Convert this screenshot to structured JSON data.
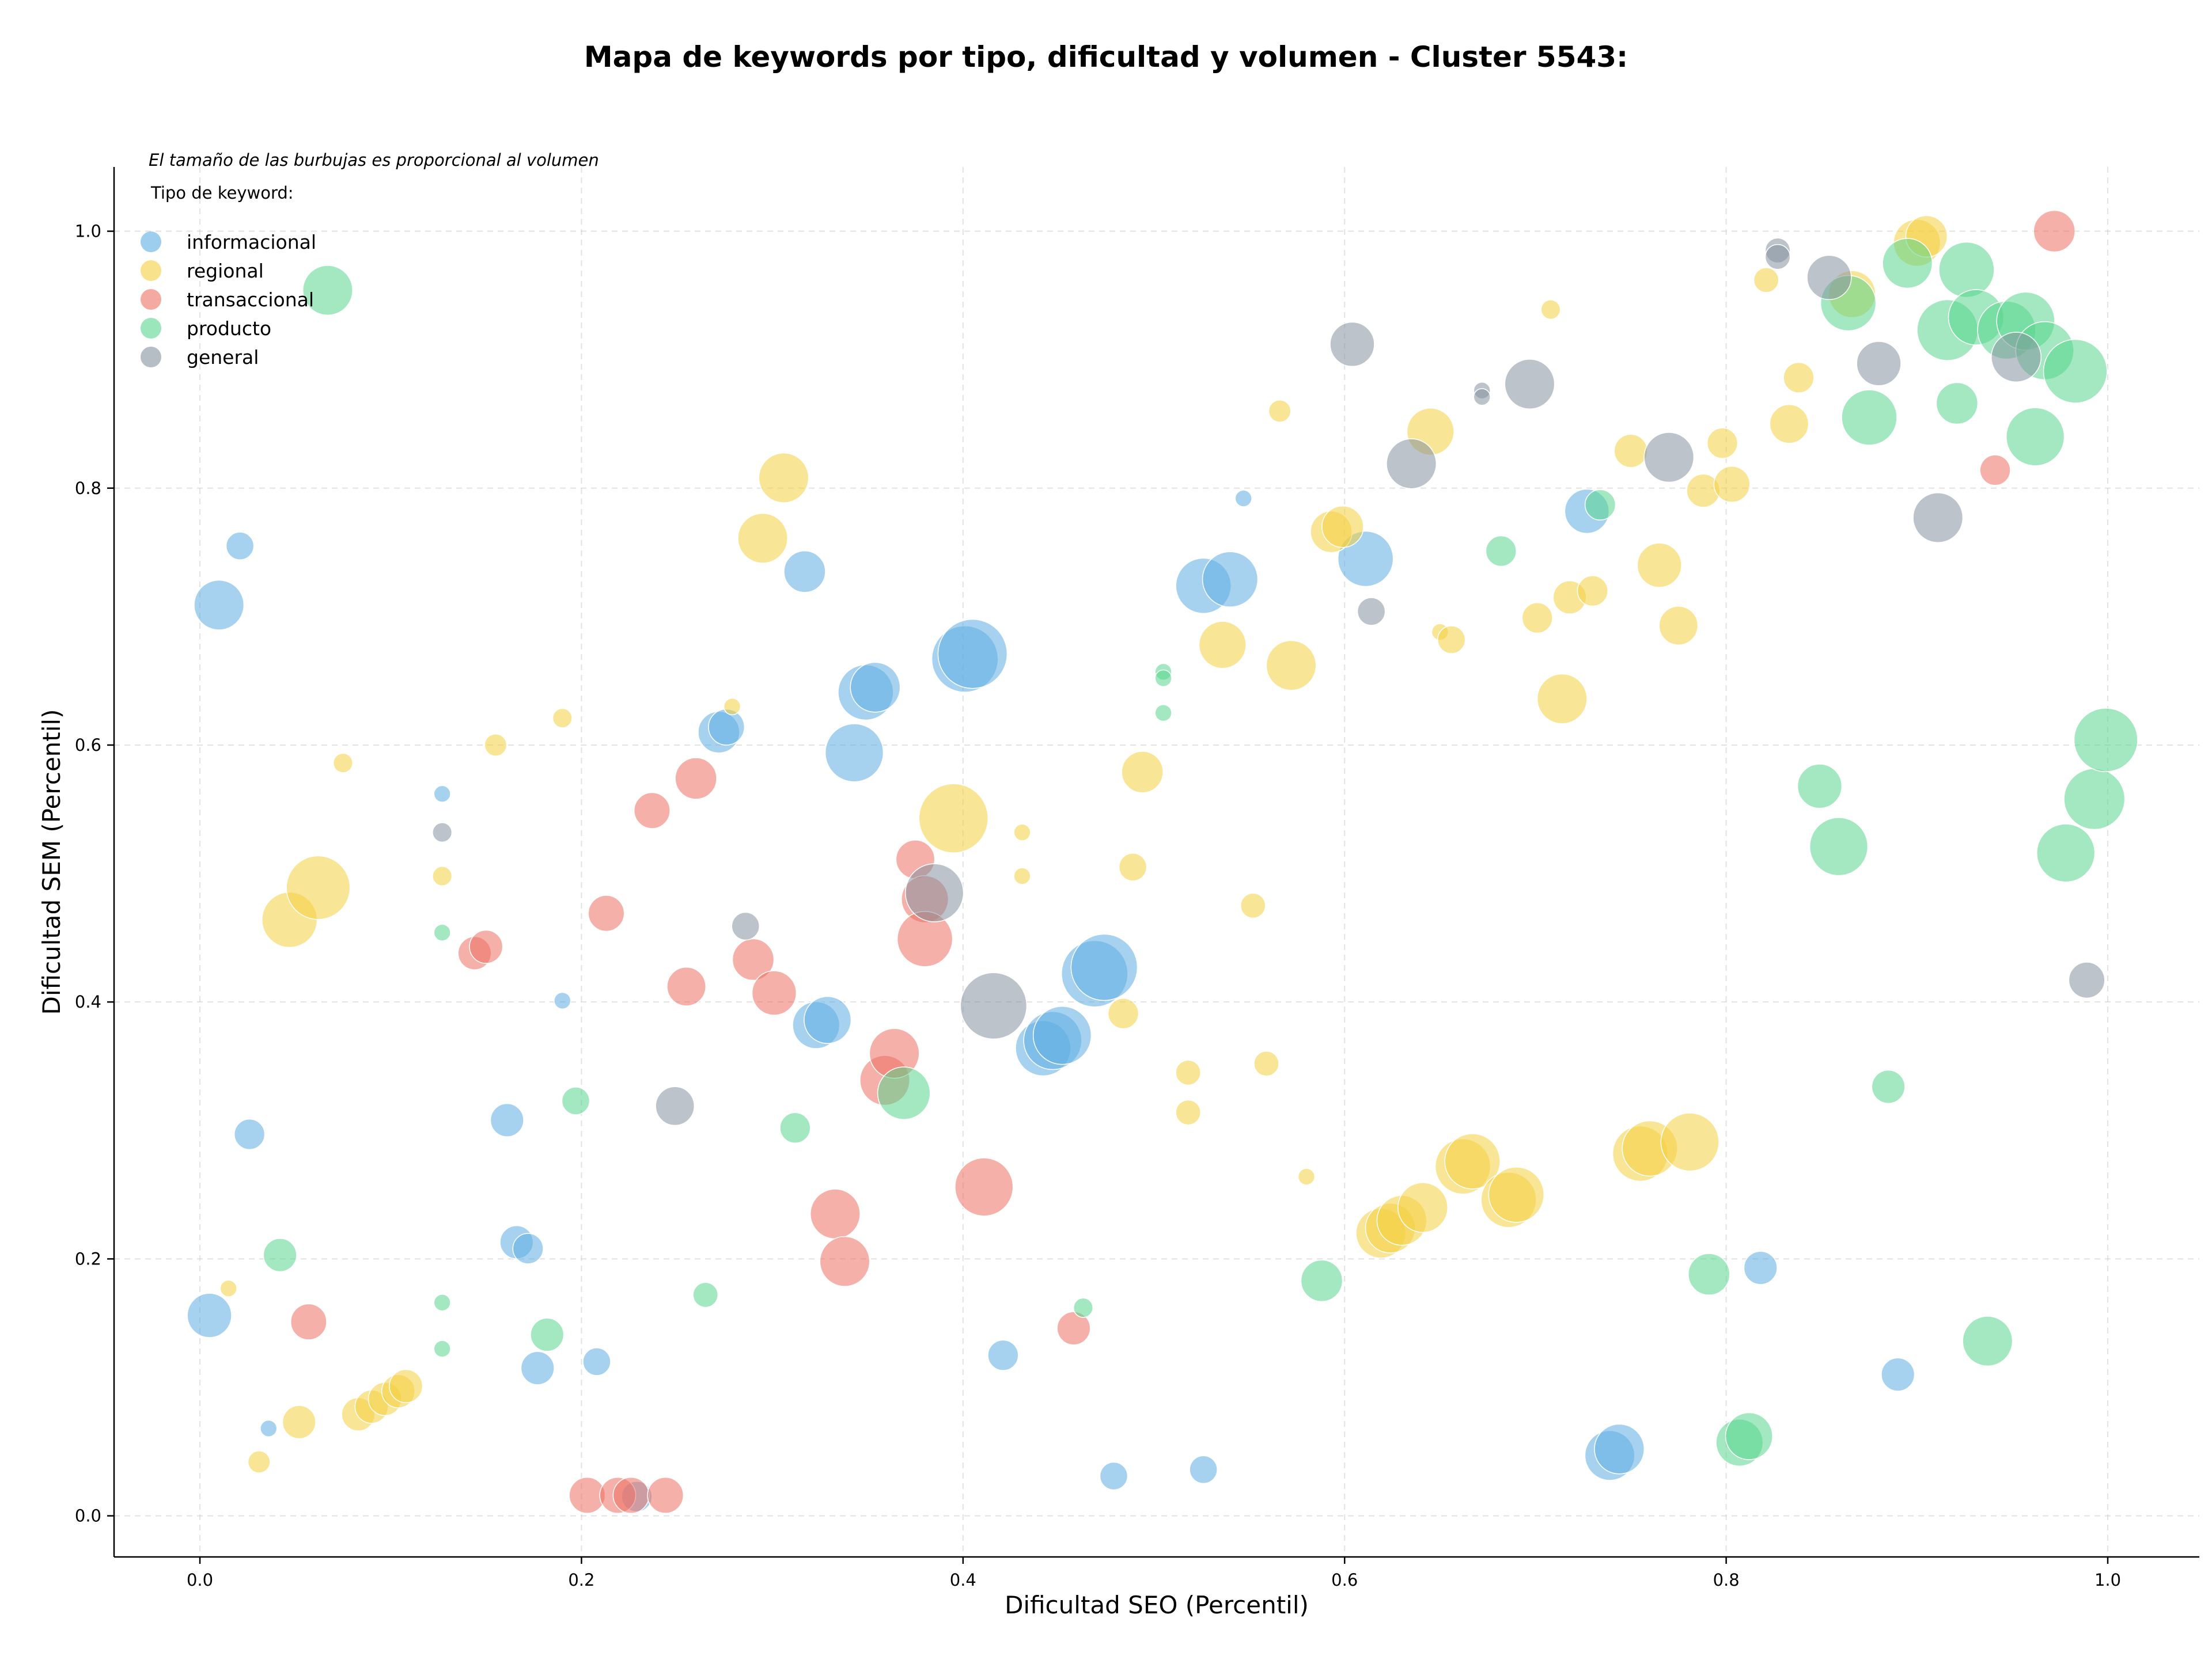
{
  "chart_data": {
    "type": "scatter",
    "title": "Mapa de keywords por tipo, dificultad y volumen - Cluster 5543:",
    "xlabel": "Dificultad SEO (Percentil)",
    "ylabel": "Dificultad SEM (Percentil)",
    "annotation": "El tamaño de las burbujas es proporcional al volumen",
    "legend_title": "Tipo de keyword:",
    "legend_position": "top-left",
    "grid": true,
    "xlim": [
      -0.045,
      1.048
    ],
    "ylim": [
      -0.032,
      1.05
    ],
    "x_ticks": [
      "0.0",
      "0.2",
      "0.4",
      "0.6",
      "0.8",
      "1.0"
    ],
    "y_ticks": [
      "0.0",
      "0.2",
      "0.4",
      "0.6",
      "0.8",
      "1.0"
    ],
    "series": [
      {
        "name": "informacional",
        "color": "#5DADE2",
        "points": [
          {
            "x": 0.01,
            "y": 0.709,
            "size": 3.6
          },
          {
            "x": 0.021,
            "y": 0.755,
            "size": 2.0
          },
          {
            "x": 0.026,
            "y": 0.297,
            "size": 2.2
          },
          {
            "x": 0.005,
            "y": 0.156,
            "size": 3.2
          },
          {
            "x": 0.036,
            "y": 0.068,
            "size": 1.2
          },
          {
            "x": 0.127,
            "y": 0.562,
            "size": 1.2
          },
          {
            "x": 0.161,
            "y": 0.308,
            "size": 2.4
          },
          {
            "x": 0.166,
            "y": 0.213,
            "size": 2.4
          },
          {
            "x": 0.172,
            "y": 0.208,
            "size": 2.2
          },
          {
            "x": 0.177,
            "y": 0.115,
            "size": 2.4
          },
          {
            "x": 0.19,
            "y": 0.401,
            "size": 1.2
          },
          {
            "x": 0.208,
            "y": 0.12,
            "size": 2.0
          },
          {
            "x": 0.229,
            "y": 0.015,
            "size": 2.2
          },
          {
            "x": 0.272,
            "y": 0.61,
            "size": 3.0
          },
          {
            "x": 0.276,
            "y": 0.614,
            "size": 2.6
          },
          {
            "x": 0.317,
            "y": 0.735,
            "size": 3.0
          },
          {
            "x": 0.343,
            "y": 0.594,
            "size": 4.2
          },
          {
            "x": 0.349,
            "y": 0.641,
            "size": 4.0
          },
          {
            "x": 0.354,
            "y": 0.645,
            "size": 3.6
          },
          {
            "x": 0.323,
            "y": 0.382,
            "size": 3.4
          },
          {
            "x": 0.329,
            "y": 0.386,
            "size": 3.4
          },
          {
            "x": 0.401,
            "y": 0.667,
            "size": 4.8
          },
          {
            "x": 0.405,
            "y": 0.671,
            "size": 5.0
          },
          {
            "x": 0.421,
            "y": 0.125,
            "size": 2.2
          },
          {
            "x": 0.442,
            "y": 0.364,
            "size": 4.0
          },
          {
            "x": 0.447,
            "y": 0.37,
            "size": 4.2
          },
          {
            "x": 0.452,
            "y": 0.374,
            "size": 4.2
          },
          {
            "x": 0.469,
            "y": 0.422,
            "size": 4.8
          },
          {
            "x": 0.474,
            "y": 0.427,
            "size": 4.8
          },
          {
            "x": 0.479,
            "y": 0.031,
            "size": 2.0
          },
          {
            "x": 0.526,
            "y": 0.724,
            "size": 4.0
          },
          {
            "x": 0.54,
            "y": 0.729,
            "size": 4.0
          },
          {
            "x": 0.526,
            "y": 0.036,
            "size": 2.0
          },
          {
            "x": 0.547,
            "y": 0.792,
            "size": 1.2
          },
          {
            "x": 0.611,
            "y": 0.745,
            "size": 4.0
          },
          {
            "x": 0.727,
            "y": 0.782,
            "size": 3.2
          },
          {
            "x": 0.739,
            "y": 0.047,
            "size": 3.6
          },
          {
            "x": 0.744,
            "y": 0.052,
            "size": 3.6
          },
          {
            "x": 0.818,
            "y": 0.193,
            "size": 2.4
          },
          {
            "x": 0.89,
            "y": 0.11,
            "size": 2.4
          }
        ]
      },
      {
        "name": "regional",
        "color": "#F4D03F",
        "points": [
          {
            "x": 0.015,
            "y": 0.177,
            "size": 1.2
          },
          {
            "x": 0.031,
            "y": 0.042,
            "size": 1.6
          },
          {
            "x": 0.052,
            "y": 0.073,
            "size": 2.4
          },
          {
            "x": 0.047,
            "y": 0.464,
            "size": 4.0
          },
          {
            "x": 0.062,
            "y": 0.489,
            "size": 4.6
          },
          {
            "x": 0.075,
            "y": 0.586,
            "size": 1.4
          },
          {
            "x": 0.083,
            "y": 0.079,
            "size": 2.4
          },
          {
            "x": 0.09,
            "y": 0.085,
            "size": 2.4
          },
          {
            "x": 0.097,
            "y": 0.091,
            "size": 2.4
          },
          {
            "x": 0.104,
            "y": 0.097,
            "size": 2.4
          },
          {
            "x": 0.108,
            "y": 0.101,
            "size": 2.4
          },
          {
            "x": 0.127,
            "y": 0.498,
            "size": 1.4
          },
          {
            "x": 0.155,
            "y": 0.6,
            "size": 1.6
          },
          {
            "x": 0.19,
            "y": 0.621,
            "size": 1.4
          },
          {
            "x": 0.279,
            "y": 0.63,
            "size": 1.2
          },
          {
            "x": 0.295,
            "y": 0.761,
            "size": 3.6
          },
          {
            "x": 0.306,
            "y": 0.808,
            "size": 3.6
          },
          {
            "x": 0.395,
            "y": 0.543,
            "size": 5.0
          },
          {
            "x": 0.431,
            "y": 0.532,
            "size": 1.2
          },
          {
            "x": 0.431,
            "y": 0.498,
            "size": 1.2
          },
          {
            "x": 0.484,
            "y": 0.391,
            "size": 2.2
          },
          {
            "x": 0.489,
            "y": 0.505,
            "size": 2.0
          },
          {
            "x": 0.494,
            "y": 0.579,
            "size": 3.0
          },
          {
            "x": 0.518,
            "y": 0.345,
            "size": 1.8
          },
          {
            "x": 0.518,
            "y": 0.314,
            "size": 1.8
          },
          {
            "x": 0.536,
            "y": 0.678,
            "size": 3.4
          },
          {
            "x": 0.552,
            "y": 0.475,
            "size": 1.8
          },
          {
            "x": 0.559,
            "y": 0.352,
            "size": 1.8
          },
          {
            "x": 0.566,
            "y": 0.86,
            "size": 1.6
          },
          {
            "x": 0.572,
            "y": 0.662,
            "size": 3.6
          },
          {
            "x": 0.58,
            "y": 0.264,
            "size": 1.2
          },
          {
            "x": 0.593,
            "y": 0.766,
            "size": 3.0
          },
          {
            "x": 0.599,
            "y": 0.77,
            "size": 3.0
          },
          {
            "x": 0.619,
            "y": 0.22,
            "size": 3.6
          },
          {
            "x": 0.624,
            "y": 0.224,
            "size": 3.6
          },
          {
            "x": 0.63,
            "y": 0.23,
            "size": 3.6
          },
          {
            "x": 0.641,
            "y": 0.24,
            "size": 3.6
          },
          {
            "x": 0.645,
            "y": 0.844,
            "size": 3.4
          },
          {
            "x": 0.65,
            "y": 0.688,
            "size": 1.2
          },
          {
            "x": 0.656,
            "y": 0.682,
            "size": 2.0
          },
          {
            "x": 0.662,
            "y": 0.272,
            "size": 4.0
          },
          {
            "x": 0.667,
            "y": 0.276,
            "size": 4.0
          },
          {
            "x": 0.686,
            "y": 0.246,
            "size": 4.0
          },
          {
            "x": 0.69,
            "y": 0.25,
            "size": 4.0
          },
          {
            "x": 0.701,
            "y": 0.699,
            "size": 2.2
          },
          {
            "x": 0.708,
            "y": 0.939,
            "size": 1.4
          },
          {
            "x": 0.714,
            "y": 0.636,
            "size": 3.6
          },
          {
            "x": 0.718,
            "y": 0.715,
            "size": 2.4
          },
          {
            "x": 0.73,
            "y": 0.72,
            "size": 2.2
          },
          {
            "x": 0.75,
            "y": 0.829,
            "size": 2.4
          },
          {
            "x": 0.755,
            "y": 0.282,
            "size": 4.0
          },
          {
            "x": 0.76,
            "y": 0.286,
            "size": 4.0
          },
          {
            "x": 0.765,
            "y": 0.74,
            "size": 3.2
          },
          {
            "x": 0.775,
            "y": 0.693,
            "size": 2.8
          },
          {
            "x": 0.781,
            "y": 0.291,
            "size": 4.2
          },
          {
            "x": 0.788,
            "y": 0.798,
            "size": 2.4
          },
          {
            "x": 0.798,
            "y": 0.835,
            "size": 2.2
          },
          {
            "x": 0.803,
            "y": 0.803,
            "size": 2.6
          },
          {
            "x": 0.821,
            "y": 0.962,
            "size": 1.8
          },
          {
            "x": 0.833,
            "y": 0.85,
            "size": 2.8
          },
          {
            "x": 0.838,
            "y": 0.886,
            "size": 2.2
          },
          {
            "x": 0.866,
            "y": 0.951,
            "size": 3.4
          },
          {
            "x": 0.9,
            "y": 0.991,
            "size": 3.4
          },
          {
            "x": 0.905,
            "y": 0.996,
            "size": 3.0
          }
        ]
      },
      {
        "name": "transaccional",
        "color": "#EC7063",
        "points": [
          {
            "x": 0.057,
            "y": 0.151,
            "size": 2.6
          },
          {
            "x": 0.144,
            "y": 0.438,
            "size": 2.4
          },
          {
            "x": 0.15,
            "y": 0.443,
            "size": 2.4
          },
          {
            "x": 0.203,
            "y": 0.016,
            "size": 2.6
          },
          {
            "x": 0.213,
            "y": 0.469,
            "size": 2.6
          },
          {
            "x": 0.219,
            "y": 0.016,
            "size": 2.6
          },
          {
            "x": 0.226,
            "y": 0.016,
            "size": 2.6
          },
          {
            "x": 0.237,
            "y": 0.549,
            "size": 2.6
          },
          {
            "x": 0.244,
            "y": 0.016,
            "size": 2.6
          },
          {
            "x": 0.255,
            "y": 0.412,
            "size": 2.8
          },
          {
            "x": 0.26,
            "y": 0.574,
            "size": 3.0
          },
          {
            "x": 0.29,
            "y": 0.433,
            "size": 3.0
          },
          {
            "x": 0.301,
            "y": 0.407,
            "size": 3.2
          },
          {
            "x": 0.333,
            "y": 0.235,
            "size": 3.6
          },
          {
            "x": 0.338,
            "y": 0.198,
            "size": 3.6
          },
          {
            "x": 0.359,
            "y": 0.339,
            "size": 3.6
          },
          {
            "x": 0.364,
            "y": 0.36,
            "size": 3.6
          },
          {
            "x": 0.375,
            "y": 0.511,
            "size": 2.8
          },
          {
            "x": 0.38,
            "y": 0.48,
            "size": 3.4
          },
          {
            "x": 0.38,
            "y": 0.449,
            "size": 4.0
          },
          {
            "x": 0.411,
            "y": 0.256,
            "size": 4.2
          },
          {
            "x": 0.458,
            "y": 0.146,
            "size": 2.4
          },
          {
            "x": 0.941,
            "y": 0.814,
            "size": 2.2
          },
          {
            "x": 0.972,
            "y": 1.0,
            "size": 3.0
          }
        ]
      },
      {
        "name": "producto",
        "color": "#58D68D",
        "points": [
          {
            "x": 0.042,
            "y": 0.203,
            "size": 2.4
          },
          {
            "x": 0.067,
            "y": 0.954,
            "size": 3.6
          },
          {
            "x": 0.127,
            "y": 0.454,
            "size": 1.2
          },
          {
            "x": 0.127,
            "y": 0.166,
            "size": 1.2
          },
          {
            "x": 0.127,
            "y": 0.13,
            "size": 1.2
          },
          {
            "x": 0.182,
            "y": 0.141,
            "size": 2.4
          },
          {
            "x": 0.197,
            "y": 0.323,
            "size": 2.0
          },
          {
            "x": 0.265,
            "y": 0.172,
            "size": 1.8
          },
          {
            "x": 0.312,
            "y": 0.302,
            "size": 2.2
          },
          {
            "x": 0.369,
            "y": 0.329,
            "size": 3.8
          },
          {
            "x": 0.463,
            "y": 0.162,
            "size": 1.4
          },
          {
            "x": 0.505,
            "y": 0.657,
            "size": 1.2
          },
          {
            "x": 0.505,
            "y": 0.652,
            "size": 1.2
          },
          {
            "x": 0.505,
            "y": 0.625,
            "size": 1.2
          },
          {
            "x": 0.588,
            "y": 0.183,
            "size": 3.0
          },
          {
            "x": 0.682,
            "y": 0.751,
            "size": 2.2
          },
          {
            "x": 0.734,
            "y": 0.787,
            "size": 2.2
          },
          {
            "x": 0.791,
            "y": 0.188,
            "size": 3.0
          },
          {
            "x": 0.807,
            "y": 0.057,
            "size": 3.4
          },
          {
            "x": 0.812,
            "y": 0.062,
            "size": 3.4
          },
          {
            "x": 0.849,
            "y": 0.568,
            "size": 3.2
          },
          {
            "x": 0.859,
            "y": 0.521,
            "size": 4.2
          },
          {
            "x": 0.864,
            "y": 0.944,
            "size": 4.0
          },
          {
            "x": 0.875,
            "y": 0.855,
            "size": 4.0
          },
          {
            "x": 0.885,
            "y": 0.334,
            "size": 2.4
          },
          {
            "x": 0.895,
            "y": 0.975,
            "size": 3.6
          },
          {
            "x": 0.916,
            "y": 0.923,
            "size": 4.4
          },
          {
            "x": 0.921,
            "y": 0.866,
            "size": 3.0
          },
          {
            "x": 0.926,
            "y": 0.97,
            "size": 4.0
          },
          {
            "x": 0.931,
            "y": 0.933,
            "size": 4.0
          },
          {
            "x": 0.937,
            "y": 0.136,
            "size": 3.6
          },
          {
            "x": 0.947,
            "y": 0.923,
            "size": 4.2
          },
          {
            "x": 0.957,
            "y": 0.93,
            "size": 4.2
          },
          {
            "x": 0.962,
            "y": 0.84,
            "size": 4.2
          },
          {
            "x": 0.967,
            "y": 0.907,
            "size": 4.2
          },
          {
            "x": 0.978,
            "y": 0.516,
            "size": 4.2
          },
          {
            "x": 0.983,
            "y": 0.891,
            "size": 4.6
          },
          {
            "x": 0.993,
            "y": 0.558,
            "size": 4.4
          },
          {
            "x": 0.999,
            "y": 0.604,
            "size": 4.6
          }
        ]
      },
      {
        "name": "general",
        "color": "#85929E",
        "points": [
          {
            "x": 0.127,
            "y": 0.532,
            "size": 1.4
          },
          {
            "x": 0.249,
            "y": 0.319,
            "size": 2.8
          },
          {
            "x": 0.286,
            "y": 0.459,
            "size": 2.0
          },
          {
            "x": 0.385,
            "y": 0.485,
            "size": 4.2
          },
          {
            "x": 0.416,
            "y": 0.397,
            "size": 4.8
          },
          {
            "x": 0.604,
            "y": 0.912,
            "size": 3.2
          },
          {
            "x": 0.614,
            "y": 0.704,
            "size": 2.0
          },
          {
            "x": 0.635,
            "y": 0.819,
            "size": 3.6
          },
          {
            "x": 0.672,
            "y": 0.876,
            "size": 1.2
          },
          {
            "x": 0.672,
            "y": 0.871,
            "size": 1.2
          },
          {
            "x": 0.697,
            "y": 0.881,
            "size": 3.6
          },
          {
            "x": 0.77,
            "y": 0.824,
            "size": 3.6
          },
          {
            "x": 0.827,
            "y": 0.985,
            "size": 1.8
          },
          {
            "x": 0.827,
            "y": 0.98,
            "size": 1.8
          },
          {
            "x": 0.854,
            "y": 0.964,
            "size": 3.2
          },
          {
            "x": 0.88,
            "y": 0.897,
            "size": 3.2
          },
          {
            "x": 0.911,
            "y": 0.777,
            "size": 3.6
          },
          {
            "x": 0.952,
            "y": 0.902,
            "size": 3.6
          },
          {
            "x": 0.989,
            "y": 0.417,
            "size": 2.6
          }
        ]
      }
    ]
  }
}
